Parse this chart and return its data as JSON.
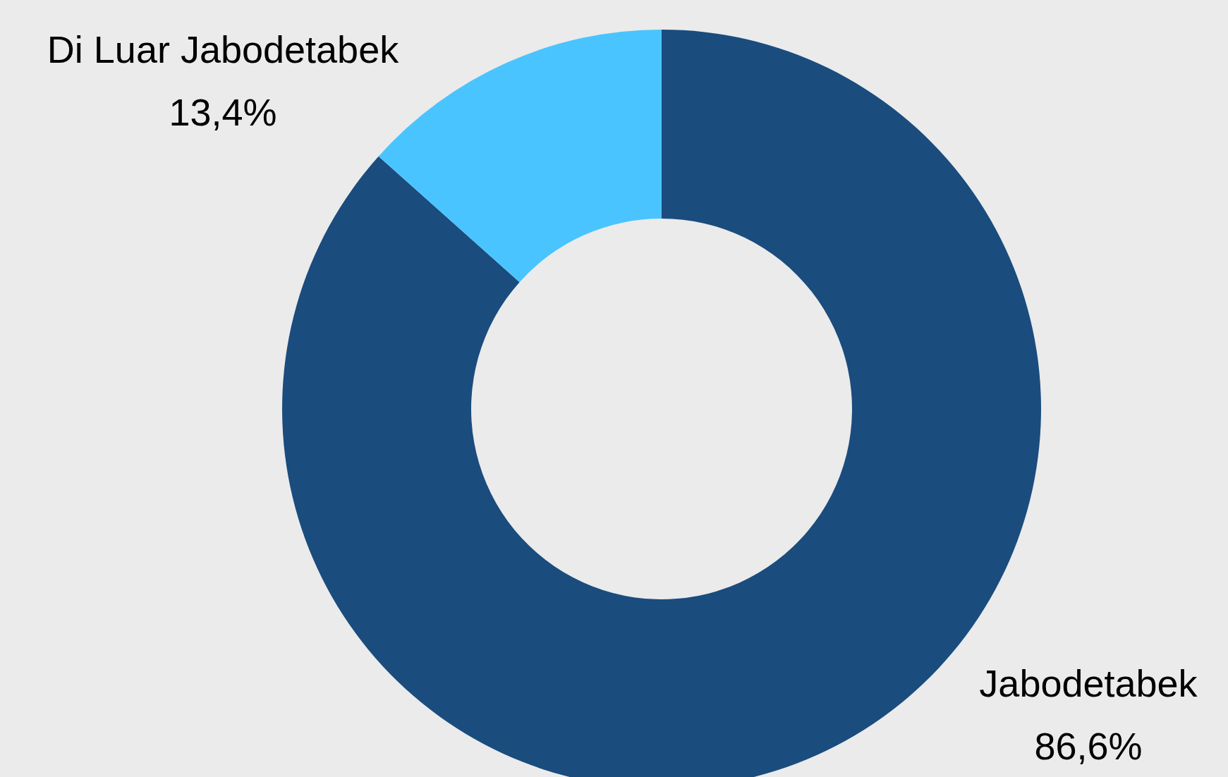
{
  "chart_data": {
    "type": "donut",
    "categories": [
      "Jabodetabek",
      "Di Luar Jabodetabek"
    ],
    "values": [
      86.6,
      13.4
    ],
    "colors": [
      "#1a4c7e",
      "#4ac4fe"
    ],
    "value_labels": [
      "86,6%",
      "13,4%"
    ]
  }
}
